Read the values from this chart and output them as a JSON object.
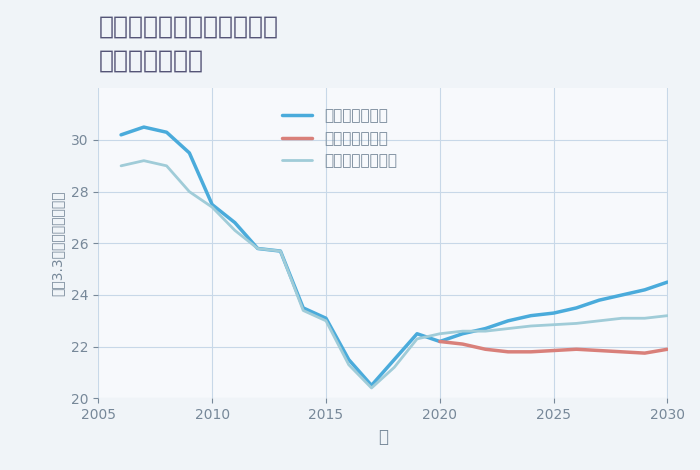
{
  "title": "兵庫県豊岡市出石町鳥居の\n土地の価格推移",
  "xlabel": "年",
  "ylabel": "坪（3.3㎡）単価（万円）",
  "background_color": "#f0f4f8",
  "plot_bg_color": "#f7f9fc",
  "grid_color": "#c8d8e8",
  "ylim": [
    20,
    32
  ],
  "yticks": [
    20,
    22,
    24,
    26,
    28,
    30
  ],
  "xlim": [
    2005,
    2030
  ],
  "xticks": [
    2005,
    2010,
    2015,
    2020,
    2025,
    2030
  ],
  "good_scenario": {
    "label": "グッドシナリオ",
    "color": "#4aabdb",
    "linewidth": 2.5,
    "x": [
      2006,
      2007,
      2008,
      2009,
      2010,
      2011,
      2012,
      2013,
      2014,
      2015,
      2016,
      2017,
      2018,
      2019,
      2020,
      2021,
      2022,
      2023,
      2024,
      2025,
      2026,
      2027,
      2028,
      2029,
      2030
    ],
    "y": [
      30.2,
      30.5,
      30.3,
      29.5,
      27.5,
      26.8,
      25.8,
      25.7,
      23.5,
      23.1,
      21.5,
      20.5,
      21.5,
      22.5,
      22.2,
      22.5,
      22.7,
      23.0,
      23.2,
      23.3,
      23.5,
      23.8,
      24.0,
      24.2,
      24.5
    ]
  },
  "bad_scenario": {
    "label": "バッドシナリオ",
    "color": "#d9807a",
    "linewidth": 2.5,
    "x": [
      2020,
      2021,
      2022,
      2023,
      2024,
      2025,
      2026,
      2027,
      2028,
      2029,
      2030
    ],
    "y": [
      22.2,
      22.1,
      21.9,
      21.8,
      21.8,
      21.85,
      21.9,
      21.85,
      21.8,
      21.75,
      21.9
    ]
  },
  "normal_scenario": {
    "label": "ノーマルシナリオ",
    "color": "#a0ccd8",
    "linewidth": 2.0,
    "x": [
      2006,
      2007,
      2008,
      2009,
      2010,
      2011,
      2012,
      2013,
      2014,
      2015,
      2016,
      2017,
      2018,
      2019,
      2020,
      2021,
      2022,
      2023,
      2024,
      2025,
      2026,
      2027,
      2028,
      2029,
      2030
    ],
    "y": [
      29.0,
      29.2,
      29.0,
      28.0,
      27.4,
      26.5,
      25.8,
      25.7,
      23.4,
      23.0,
      21.3,
      20.4,
      21.2,
      22.3,
      22.5,
      22.6,
      22.6,
      22.7,
      22.8,
      22.85,
      22.9,
      23.0,
      23.1,
      23.1,
      23.2
    ]
  },
  "title_color": "#555577",
  "title_fontsize": 18,
  "axis_label_color": "#778899",
  "tick_color": "#778899",
  "legend_fontsize": 11
}
